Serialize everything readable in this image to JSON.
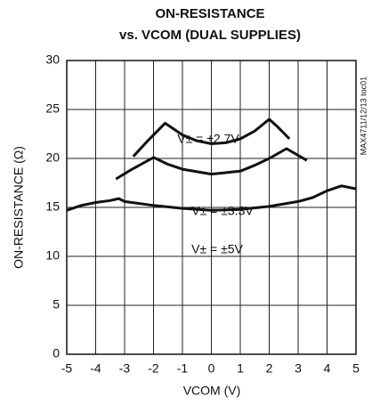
{
  "chart_data": {
    "type": "line",
    "title": [
      "ON-RESISTANCE",
      "vs. VCOM (DUAL SUPPLIES)"
    ],
    "x_label": "VCOM (V)",
    "y_label": "ON-RESISTANCE (Ω)",
    "side_note": "MAX4711/12/13 toc01",
    "annotations": [
      "V± = ±2.7V",
      "V± = ±3.3V",
      "V± = ±5V"
    ],
    "xlim": [
      -5,
      5
    ],
    "xticks": [
      -5,
      -4,
      -3,
      -2,
      -1,
      0,
      1,
      2,
      3,
      4,
      5
    ],
    "ylim": [
      0,
      30
    ],
    "yticks": [
      0,
      5,
      10,
      15,
      20,
      25,
      30
    ],
    "grid": true,
    "series": [
      {
        "name": "V± = ±2.7V",
        "color": "#111111",
        "x": [
          -2.7,
          -2.2,
          -1.6,
          -1,
          -0.5,
          0,
          0.5,
          1,
          1.5,
          2,
          2.3,
          2.7
        ],
        "values": [
          20.2,
          21.8,
          23.6,
          22.4,
          21.8,
          21.5,
          21.6,
          22.0,
          22.8,
          24.0,
          23.2,
          22.0
        ]
      },
      {
        "name": "V± = ±3.3V",
        "color": "#111111",
        "x": [
          -3.3,
          -2.8,
          -2,
          -1.5,
          -1,
          0,
          1,
          1.5,
          2,
          2.6,
          3.3
        ],
        "values": [
          17.9,
          18.8,
          20.1,
          19.4,
          18.9,
          18.4,
          18.7,
          19.3,
          20.0,
          21.0,
          19.8
        ]
      },
      {
        "name": "V± = ±5V",
        "color": "#111111",
        "x": [
          -5,
          -4.5,
          -4,
          -3.5,
          -3.2,
          -3,
          -2,
          -1,
          0,
          1,
          2,
          3,
          3.5,
          4,
          4.5,
          5
        ],
        "values": [
          14.7,
          15.2,
          15.5,
          15.7,
          15.9,
          15.6,
          15.2,
          14.9,
          14.7,
          14.8,
          15.1,
          15.6,
          16.0,
          16.7,
          17.2,
          16.9
        ]
      }
    ]
  }
}
